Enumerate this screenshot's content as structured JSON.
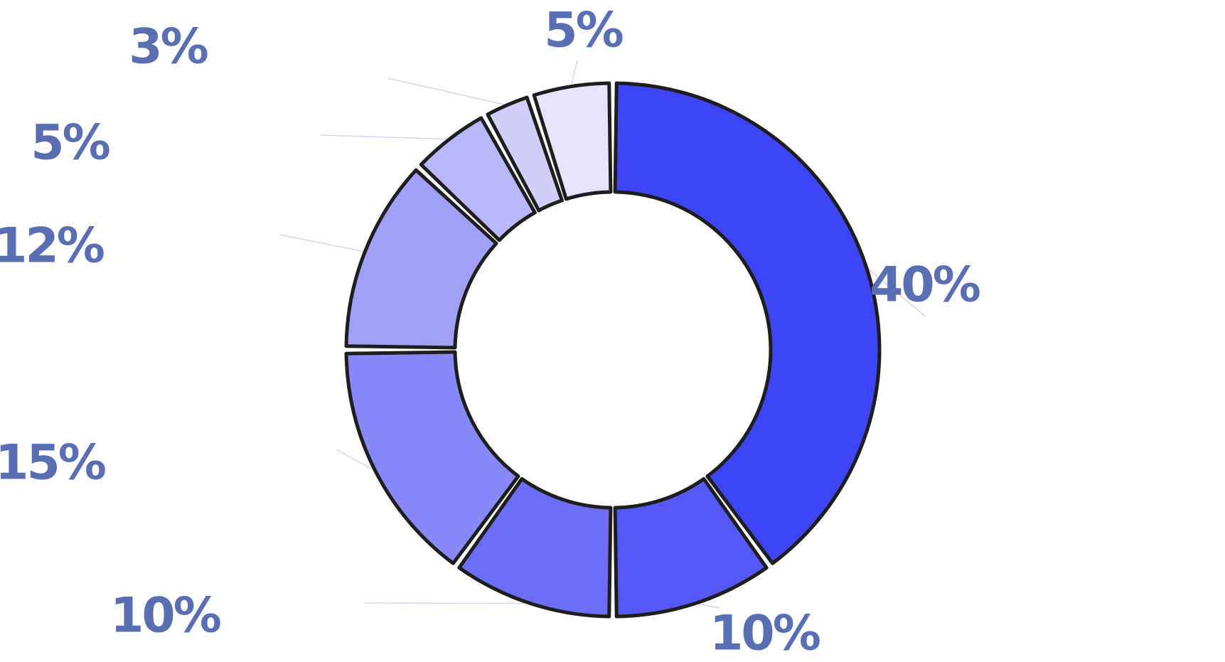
{
  "chart_data": {
    "type": "pie",
    "variant": "donut",
    "title": "",
    "slices": [
      {
        "value": 40,
        "label": "40%",
        "color": "#3d45f5"
      },
      {
        "value": 10,
        "label": "10%",
        "color": "#5358f6"
      },
      {
        "value": 10,
        "label": "10%",
        "color": "#6d6ef7"
      },
      {
        "value": 15,
        "label": "15%",
        "color": "#8789f9"
      },
      {
        "value": 12,
        "label": "12%",
        "color": "#a19ff6"
      },
      {
        "value": 5,
        "label": "5%",
        "color": "#b8b7f8"
      },
      {
        "value": 3,
        "label": "3%",
        "color": "#cfcff9"
      },
      {
        "value": 5,
        "label": "5%",
        "color": "#e5e4fc"
      }
    ],
    "label_color": "#5a6eb4",
    "outline_color": "#1e1e1e",
    "leader_color": "#d4d6ee",
    "legend": "none"
  }
}
